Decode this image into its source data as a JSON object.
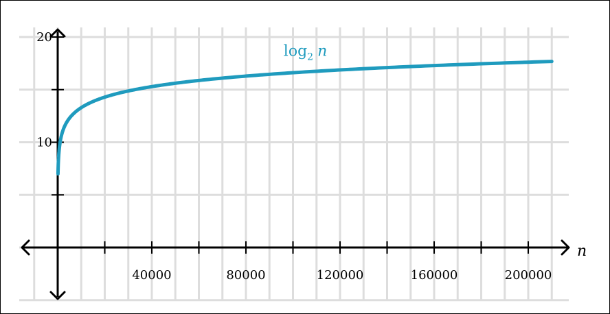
{
  "chart_data": {
    "type": "line",
    "title": "",
    "xlabel": "n",
    "ylabel": "",
    "xlim": [
      -10000,
      210000
    ],
    "ylim": [
      -5,
      20
    ],
    "x_ticks": [
      20000,
      40000,
      60000,
      80000,
      100000,
      120000,
      140000,
      160000,
      180000,
      200000
    ],
    "x_tick_labels": [
      {
        "value": 40000,
        "label": "40000"
      },
      {
        "value": 80000,
        "label": "80000"
      },
      {
        "value": 120000,
        "label": "120000"
      },
      {
        "value": 160000,
        "label": "160000"
      },
      {
        "value": 200000,
        "label": "200000"
      }
    ],
    "y_ticks": [
      5,
      10,
      15,
      20
    ],
    "y_tick_labels": [
      {
        "value": 10,
        "label": "10"
      },
      {
        "value": 20,
        "label": "20"
      }
    ],
    "grid": true,
    "series": [
      {
        "name": "log",
        "name_subscript": "2",
        "name_variable": "n",
        "function": "log2",
        "color": "#1f9bbe",
        "x_start": 128,
        "x_end": 210000
      }
    ],
    "annotation_anchor": {
      "x": 96000,
      "y": 18.2
    }
  },
  "colors": {
    "grid": "#dddddd",
    "axis": "#000000",
    "curve": "#1f9bbe"
  }
}
